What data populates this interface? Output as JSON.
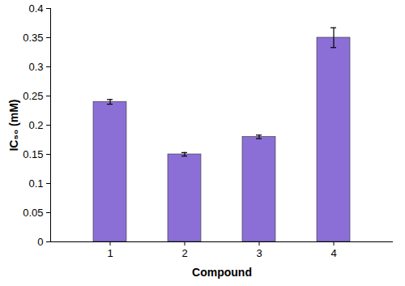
{
  "chart_data": {
    "type": "bar",
    "xlabel": "Compound",
    "ylabel": "IC₅₀ (mM)",
    "categories": [
      "1",
      "2",
      "3",
      "4"
    ],
    "values": [
      0.24,
      0.15,
      0.18,
      0.35
    ],
    "errors": [
      0.004,
      0.003,
      0.003,
      0.017
    ],
    "color": "#8b6fd6",
    "ylim": [
      0,
      0.4
    ],
    "yticks": [
      0,
      0.05,
      0.1,
      0.15,
      0.2,
      0.25,
      0.3,
      0.35,
      0.4
    ],
    "grid": false
  }
}
